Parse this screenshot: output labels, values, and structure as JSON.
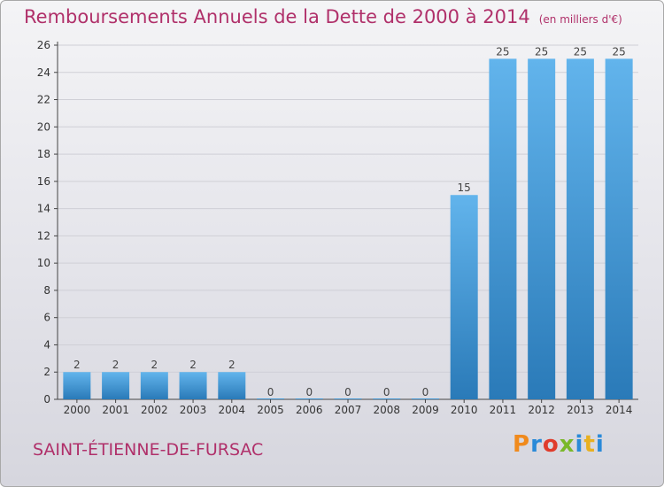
{
  "title": {
    "main": "Remboursements Annuels de la Dette de 2000 à 2014",
    "unit": "(en milliers d'€)"
  },
  "commune": "SAINT-ÉTIENNE-DE-FURSAC",
  "logo": {
    "text": "Proxiti",
    "colors": [
      "#f08a1c",
      "#2a8ad8",
      "#e03c2c",
      "#7ab82a",
      "#2a8ad8",
      "#e8b020",
      "#2a8ad8"
    ]
  },
  "colors": {
    "title": "#b0306a",
    "bar_top": "#62b4ec",
    "bar_bottom": "#2a7ab8",
    "grid": "#cfcfd6"
  },
  "chart_data": {
    "type": "bar",
    "title": "Remboursements Annuels de la Dette de 2000 à 2014",
    "xlabel": "",
    "ylabel": "",
    "categories": [
      "2000",
      "2001",
      "2002",
      "2003",
      "2004",
      "2005",
      "2006",
      "2007",
      "2008",
      "2009",
      "2010",
      "2011",
      "2012",
      "2013",
      "2014"
    ],
    "values": [
      2,
      2,
      2,
      2,
      2,
      0,
      0,
      0,
      0,
      0,
      15,
      25,
      25,
      25,
      25
    ],
    "ylim": [
      0,
      26
    ],
    "yticks": [
      0,
      2,
      4,
      6,
      8,
      10,
      12,
      14,
      16,
      18,
      20,
      22,
      24,
      26
    ],
    "grid": true,
    "data_labels": true
  }
}
